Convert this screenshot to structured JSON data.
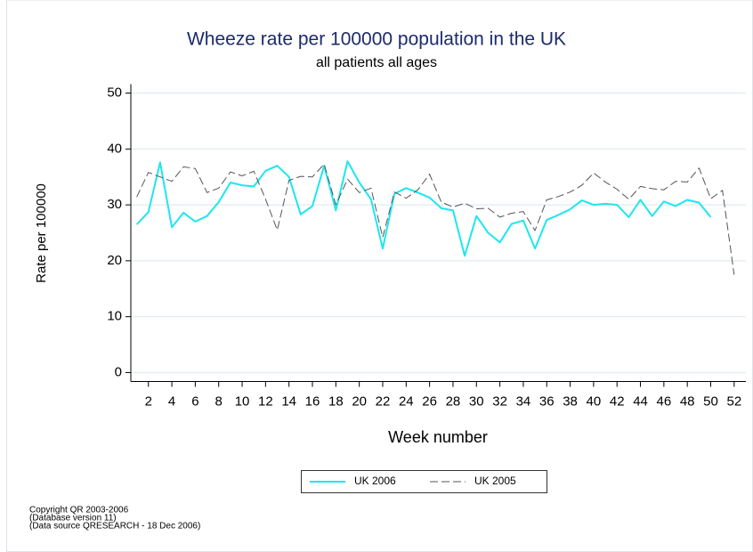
{
  "chart_data": {
    "type": "line",
    "title": "Wheeze rate per 100000 population in the UK",
    "subtitle": "all patients all ages",
    "x_label": "Week number",
    "y_label": "Rate per 100000",
    "x": [
      1,
      2,
      3,
      4,
      5,
      6,
      7,
      8,
      9,
      10,
      11,
      12,
      13,
      14,
      15,
      16,
      17,
      18,
      19,
      20,
      21,
      22,
      23,
      24,
      25,
      26,
      27,
      28,
      29,
      30,
      31,
      32,
      33,
      34,
      35,
      36,
      37,
      38,
      39,
      40,
      41,
      42,
      43,
      44,
      45,
      46,
      47,
      48,
      49,
      50,
      51,
      52
    ],
    "series": [
      {
        "name": "UK 2006",
        "color": "#1ee6ee",
        "dashed": false,
        "values": [
          26.5,
          28.7,
          37.6,
          26.0,
          28.6,
          27.0,
          28.0,
          30.5,
          34.0,
          33.5,
          33.3,
          36.1,
          37.0,
          35.0,
          28.3,
          29.8,
          37.0,
          29.0,
          37.8,
          34.0,
          31.0,
          22.2,
          32.0,
          33.0,
          32.2,
          31.3,
          29.4,
          29.0,
          20.9,
          28.0,
          25.0,
          23.3,
          26.6,
          27.2,
          22.2,
          27.3,
          28.2,
          29.2,
          30.8,
          30.0,
          30.2,
          30.0,
          27.8,
          30.9,
          28.0,
          30.6,
          29.8,
          30.9,
          30.4,
          27.8,
          null,
          null
        ]
      },
      {
        "name": "UK 2005",
        "color": "#555555",
        "dashed": true,
        "values": [
          31.4,
          35.8,
          35.0,
          34.2,
          36.8,
          36.5,
          32.2,
          33.0,
          35.9,
          35.2,
          36.0,
          31.0,
          25.5,
          34.4,
          35.1,
          35.0,
          37.3,
          30.0,
          34.6,
          32.2,
          33.0,
          24.2,
          32.3,
          31.2,
          32.7,
          35.5,
          30.5,
          29.6,
          30.3,
          29.3,
          29.4,
          27.8,
          28.5,
          28.8,
          25.4,
          30.9,
          31.5,
          32.3,
          33.5,
          35.7,
          34.1,
          32.8,
          31.0,
          33.3,
          32.9,
          32.7,
          34.2,
          34.1,
          36.6,
          31.1,
          32.6,
          17.5
        ]
      }
    ],
    "xlim": [
      0.5,
      53
    ],
    "xticks": [
      2,
      4,
      6,
      8,
      10,
      12,
      14,
      16,
      18,
      20,
      22,
      24,
      26,
      28,
      30,
      32,
      34,
      36,
      38,
      40,
      42,
      44,
      46,
      48,
      50,
      52
    ],
    "ylim": [
      -1.6,
      51.6
    ],
    "yticks": [
      0,
      10,
      20,
      30,
      40,
      50
    ],
    "grid": true,
    "footnotes": [
      "Copyright QR 2003-2006",
      "(Database version 11)",
      "(Data source QRESEARCH - 18 Dec 2006)"
    ]
  }
}
